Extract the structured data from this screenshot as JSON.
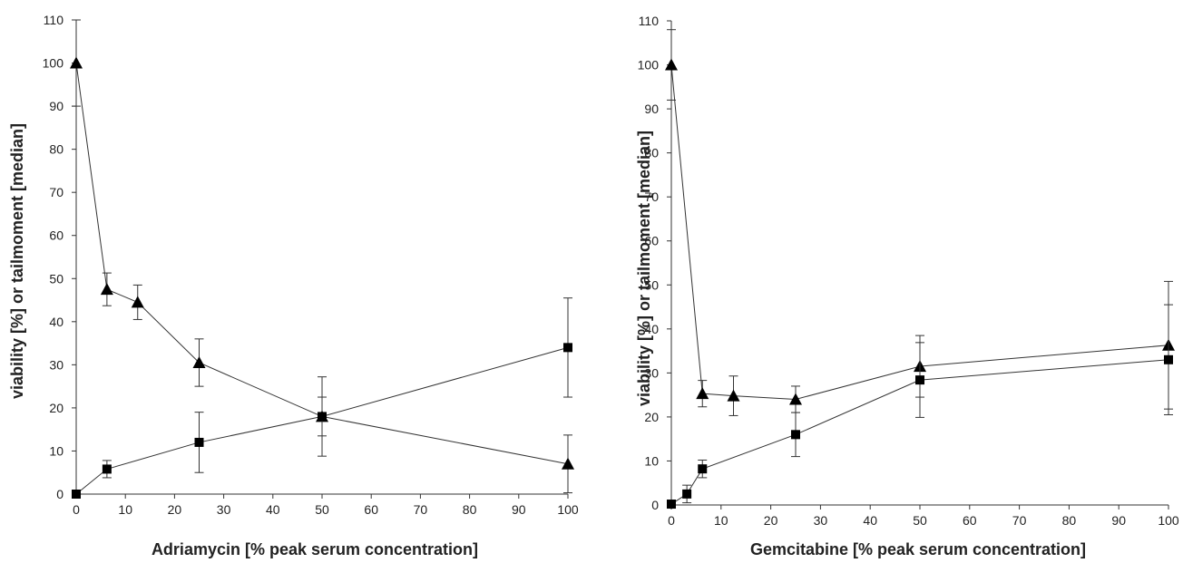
{
  "chart_data": [
    {
      "type": "line",
      "title": "",
      "xlabel": "Adriamycin  [% peak serum concentration]",
      "ylabel": "viability [%] or tailmoment [median]",
      "xlim": [
        0,
        100
      ],
      "ylim": [
        0,
        110
      ],
      "xticks": [
        0,
        10,
        20,
        30,
        40,
        50,
        60,
        70,
        80,
        90,
        100
      ],
      "yticks": [
        0,
        10,
        20,
        30,
        40,
        50,
        60,
        70,
        80,
        90,
        100,
        110
      ],
      "grid": false,
      "legend": "none",
      "series": [
        {
          "marker": "triangle",
          "x": [
            0,
            6.25,
            12.5,
            25,
            50,
            100
          ],
          "values": [
            100,
            47.5,
            44.5,
            30.5,
            18,
            7
          ],
          "err": [
            10,
            3.8,
            4,
            5.5,
            9.2,
            6.7
          ]
        },
        {
          "marker": "square",
          "x": [
            0,
            6.25,
            25,
            50,
            100
          ],
          "values": [
            0,
            5.8,
            12,
            18,
            34
          ],
          "err": [
            0,
            2,
            7,
            4.5,
            11.5
          ]
        }
      ]
    },
    {
      "type": "line",
      "title": "",
      "xlabel": "Gemcitabine  [% peak serum concentration]",
      "ylabel": "viability [%] or tailmoment [median]",
      "xlim": [
        0,
        100
      ],
      "ylim": [
        0,
        110
      ],
      "xticks": [
        0,
        10,
        20,
        30,
        40,
        50,
        60,
        70,
        80,
        90,
        100
      ],
      "yticks": [
        0,
        10,
        20,
        30,
        40,
        50,
        60,
        70,
        80,
        90,
        100,
        110
      ],
      "grid": false,
      "legend": "none",
      "series": [
        {
          "marker": "triangle",
          "x": [
            0,
            6.25,
            12.5,
            25,
            50,
            100
          ],
          "values": [
            100,
            25.3,
            24.8,
            24,
            31.5,
            36.3
          ],
          "err": [
            8,
            3,
            4.5,
            3,
            7,
            14.5
          ]
        },
        {
          "marker": "square",
          "x": [
            0,
            3.125,
            6.25,
            25,
            50,
            100
          ],
          "values": [
            0.2,
            2.5,
            8.2,
            16,
            28.4,
            33
          ],
          "err": [
            0,
            2,
            2,
            5,
            8.5,
            12.5
          ]
        }
      ]
    }
  ]
}
